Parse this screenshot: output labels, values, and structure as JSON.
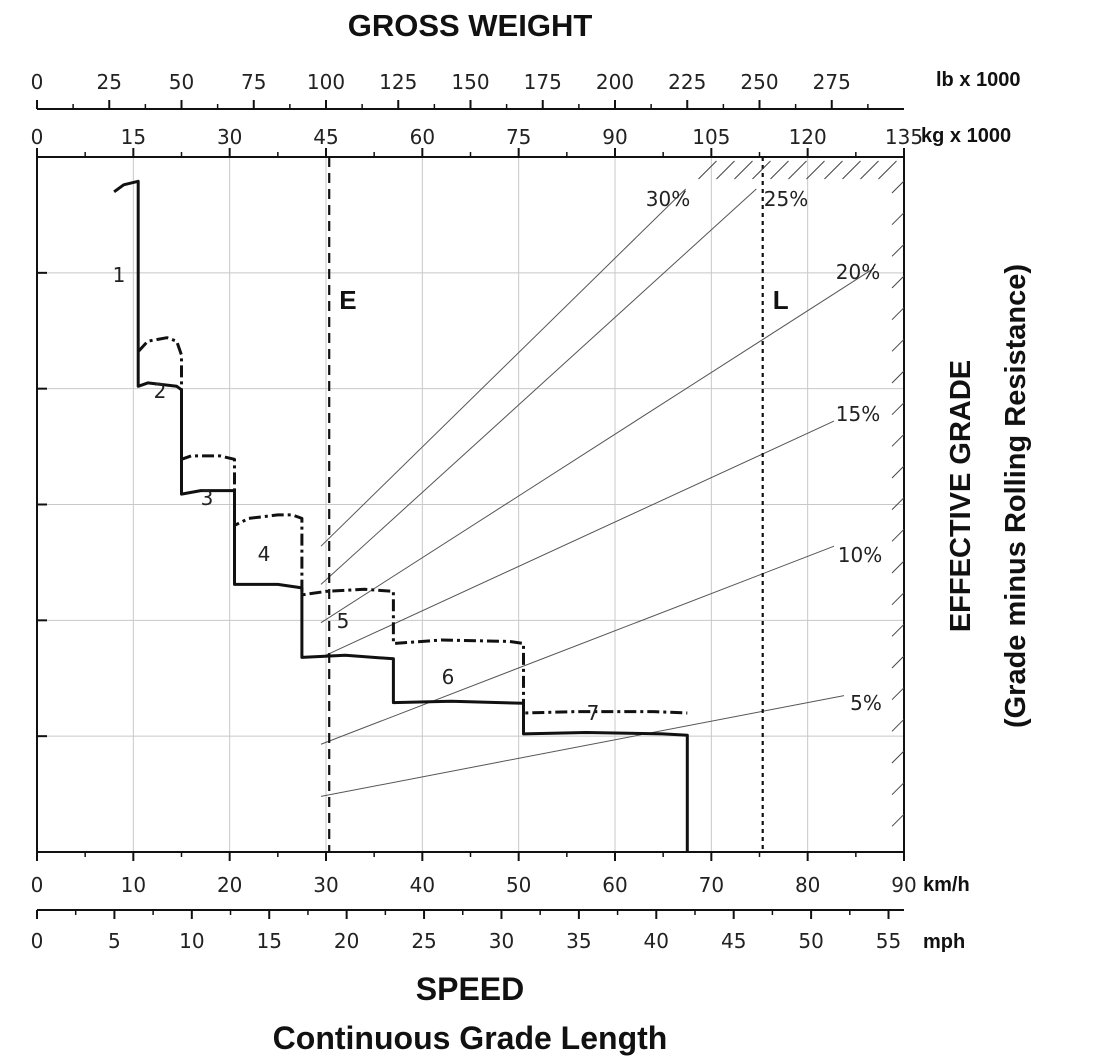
{
  "chart_data": {
    "type": "line",
    "title": "GROSS WEIGHT",
    "xlabel": "SPEED",
    "xlabel_sub": "Continuous Grade Length",
    "ylabel": "EFFECTIVE GRADE",
    "ylabel_sub": "(Grade minus Rolling Resistance)",
    "grid": true,
    "top_axis_lb": {
      "unit": "lb x 1000",
      "range": [
        0,
        300
      ],
      "ticks": [
        "0",
        "25",
        "50",
        "75",
        "100",
        "125",
        "150",
        "175",
        "200",
        "225",
        "250",
        "275"
      ]
    },
    "top_axis_kg": {
      "unit": "kg x 1000",
      "range": [
        0,
        135
      ],
      "ticks": [
        "0",
        "15",
        "30",
        "45",
        "60",
        "75",
        "90",
        "105",
        "120",
        "135"
      ]
    },
    "bottom_axis_kmh": {
      "unit": "km/h",
      "range": [
        0,
        90
      ],
      "ticks": [
        "0",
        "10",
        "20",
        "30",
        "40",
        "50",
        "60",
        "70",
        "80",
        "90"
      ]
    },
    "bottom_axis_mph": {
      "unit": "mph",
      "range": [
        0,
        56
      ],
      "ticks": [
        "0",
        "5",
        "10",
        "15",
        "20",
        "25",
        "30",
        "35",
        "40",
        "45",
        "50",
        "55"
      ]
    },
    "grade_lines": [
      {
        "label": "30%",
        "slope": 30
      },
      {
        "label": "25%",
        "slope": 25
      },
      {
        "label": "20%",
        "slope": 20
      },
      {
        "label": "15%",
        "slope": 15
      },
      {
        "label": "10%",
        "slope": 10
      },
      {
        "label": "5%",
        "slope": 5
      }
    ],
    "markers": [
      {
        "label": "E",
        "kg": 45.5,
        "style": "dashed"
      },
      {
        "label": "L",
        "kg": 113,
        "style": "dotted"
      }
    ],
    "gear_labels": [
      "1",
      "2",
      "3",
      "4",
      "5",
      "6",
      "7"
    ],
    "series": [
      {
        "name": "solid",
        "style": "solid",
        "points": [
          [
            8,
            0.95
          ],
          [
            9,
            0.96
          ],
          [
            10.5,
            0.965
          ],
          [
            10.5,
            0.67
          ],
          [
            11.5,
            0.675
          ],
          [
            14.5,
            0.67
          ],
          [
            15,
            0.665
          ],
          [
            15,
            0.515
          ],
          [
            17,
            0.52
          ],
          [
            20.5,
            0.52
          ],
          [
            20.5,
            0.385
          ],
          [
            25,
            0.385
          ],
          [
            27.5,
            0.38
          ],
          [
            27.5,
            0.28
          ],
          [
            32,
            0.283
          ],
          [
            37,
            0.278
          ],
          [
            37,
            0.215
          ],
          [
            43,
            0.217
          ],
          [
            50.5,
            0.214
          ],
          [
            50.5,
            0.17
          ],
          [
            57,
            0.172
          ],
          [
            65,
            0.17
          ],
          [
            67.5,
            0.168
          ],
          [
            67.5,
            0.0
          ]
        ]
      },
      {
        "name": "dashdot",
        "style": "dash-dot",
        "points": [
          [
            10.5,
            0.72
          ],
          [
            11.5,
            0.735
          ],
          [
            13.5,
            0.74
          ],
          [
            14.5,
            0.735
          ],
          [
            15,
            0.715
          ],
          [
            15,
            0.565
          ],
          [
            16,
            0.57
          ],
          [
            19,
            0.57
          ],
          [
            20.5,
            0.565
          ],
          [
            20.5,
            0.47
          ],
          [
            22,
            0.48
          ],
          [
            25,
            0.485
          ],
          [
            26.5,
            0.485
          ],
          [
            27.5,
            0.48
          ],
          [
            27.5,
            0.37
          ],
          [
            30,
            0.375
          ],
          [
            34,
            0.378
          ],
          [
            37,
            0.375
          ],
          [
            37,
            0.3
          ],
          [
            42,
            0.305
          ],
          [
            49,
            0.303
          ],
          [
            50.5,
            0.3
          ],
          [
            50.5,
            0.2
          ],
          [
            56,
            0.202
          ],
          [
            64,
            0.202
          ],
          [
            67.5,
            0.2
          ]
        ]
      }
    ]
  }
}
